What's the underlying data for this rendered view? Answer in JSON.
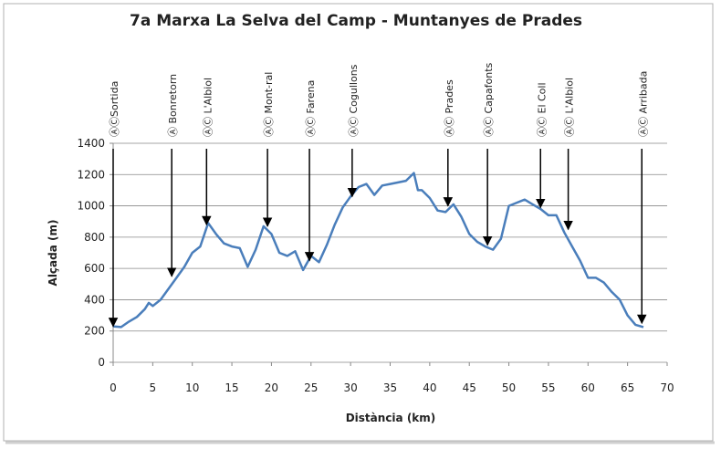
{
  "chart_data": {
    "type": "line",
    "title": "7a Marxa La Selva del Camp - Muntanyes de Prades",
    "x_label": "Distància (km)",
    "y_label": "Alçada (m)",
    "color": "#4a7ebb",
    "grid": true,
    "x": [
      0,
      1,
      2,
      3,
      4,
      4.5,
      5,
      6,
      7,
      8,
      9,
      10,
      11,
      12,
      13,
      14,
      15,
      16,
      17,
      18,
      19,
      20,
      21,
      22,
      23,
      24,
      25,
      26,
      27,
      28,
      29,
      30,
      31,
      32,
      33,
      34,
      35,
      36,
      37,
      38,
      38.5,
      39,
      40,
      41,
      42,
      43,
      44,
      45,
      46,
      47,
      48,
      49,
      50,
      51,
      52,
      53,
      54,
      55,
      56,
      57,
      58,
      59,
      60,
      61,
      62,
      63,
      64,
      65,
      66,
      67
    ],
    "values": [
      230,
      225,
      260,
      290,
      340,
      380,
      360,
      400,
      470,
      540,
      610,
      700,
      740,
      890,
      820,
      760,
      740,
      730,
      610,
      720,
      870,
      820,
      700,
      680,
      710,
      590,
      680,
      640,
      750,
      880,
      990,
      1060,
      1120,
      1140,
      1070,
      1130,
      1140,
      1150,
      1160,
      1210,
      1100,
      1100,
      1050,
      970,
      960,
      1010,
      930,
      820,
      770,
      740,
      720,
      790,
      1000,
      1020,
      1040,
      1010,
      980,
      940,
      940,
      830,
      740,
      650,
      540,
      540,
      510,
      450,
      400,
      300,
      240,
      225
    ],
    "xlim": [
      0,
      70
    ],
    "xticks": [
      0,
      5,
      10,
      15,
      20,
      25,
      30,
      35,
      40,
      45,
      50,
      55,
      60,
      65,
      70
    ],
    "ylim": [
      0,
      1400
    ],
    "yticks": [
      0,
      200,
      400,
      600,
      800,
      1000,
      1200,
      1400
    ],
    "annotations": [
      {
        "label": "ⒶⒸSortida",
        "x": 0,
        "y": 230
      },
      {
        "label": "Ⓐ Bonretorn",
        "x": 7.4,
        "y": 550
      },
      {
        "label": "ⒶⒸ L'Albiol",
        "x": 11.8,
        "y": 880
      },
      {
        "label": "ⒶⒸ Mont-ral",
        "x": 19.5,
        "y": 870
      },
      {
        "label": "ⒶⒸ Farena",
        "x": 24.8,
        "y": 650
      },
      {
        "label": "ⒶⒸ Cogullons",
        "x": 30.2,
        "y": 1060
      },
      {
        "label": "ⒶⒸ Prades",
        "x": 42.3,
        "y": 1000
      },
      {
        "label": "ⒶⒸ Capafonts",
        "x": 47.3,
        "y": 750
      },
      {
        "label": "ⒶⒸ El Coll",
        "x": 54,
        "y": 990
      },
      {
        "label": "ⒶⒸ L'Albiol",
        "x": 57.5,
        "y": 850
      },
      {
        "label": "ⒶⒸ Arribada",
        "x": 66.8,
        "y": 250
      }
    ]
  }
}
